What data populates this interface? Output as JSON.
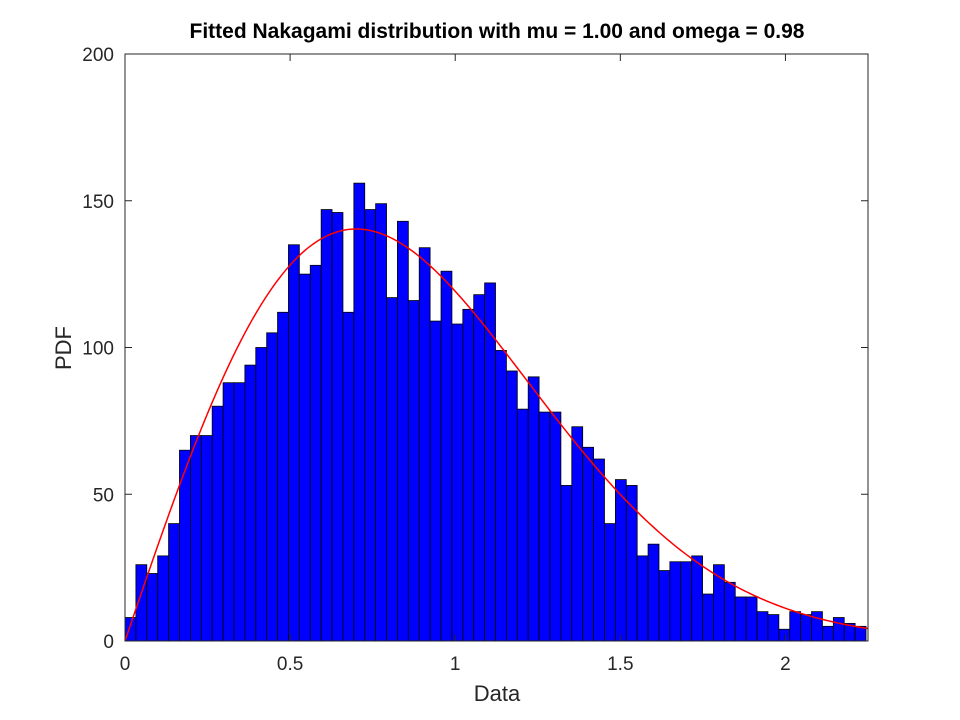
{
  "chart_data": {
    "type": "bar",
    "title": "Fitted Nakagami distribution with mu = 1.00 and omega = 0.98",
    "xlabel": "Data",
    "ylabel": "PDF",
    "xlim": [
      0,
      2.25
    ],
    "ylim": [
      0,
      200
    ],
    "xticks": [
      0,
      0.5,
      1,
      1.5,
      2
    ],
    "xtick_labels": [
      "0",
      "0.5",
      "1",
      "1.5",
      "2"
    ],
    "yticks": [
      0,
      50,
      100,
      150,
      200
    ],
    "ytick_labels": [
      "0",
      "50",
      "100",
      "150",
      "200"
    ],
    "grid": false,
    "bin_start": 0.0,
    "bin_width": 0.033,
    "values": [
      8,
      26,
      23,
      29,
      40,
      65,
      70,
      70,
      80,
      88,
      88,
      94,
      100,
      105,
      112,
      135,
      125,
      128,
      147,
      146,
      112,
      156,
      147,
      149,
      117,
      143,
      116,
      134,
      109,
      126,
      108,
      113,
      118,
      122,
      99,
      92,
      79,
      90,
      78,
      78,
      53,
      73,
      66,
      62,
      40,
      55,
      53,
      29,
      33,
      24,
      27,
      27,
      29,
      16,
      26,
      20,
      15,
      15,
      10,
      9,
      4,
      10,
      9,
      10,
      5,
      8,
      6,
      5
    ],
    "fit_curve": {
      "name": "Nakagami fit",
      "mu": 1.0,
      "omega": 0.98,
      "scale": 162.0
    },
    "colors": {
      "bars": "#0000ff",
      "bar_edge": "#000000",
      "curve": "#ff0000"
    }
  }
}
